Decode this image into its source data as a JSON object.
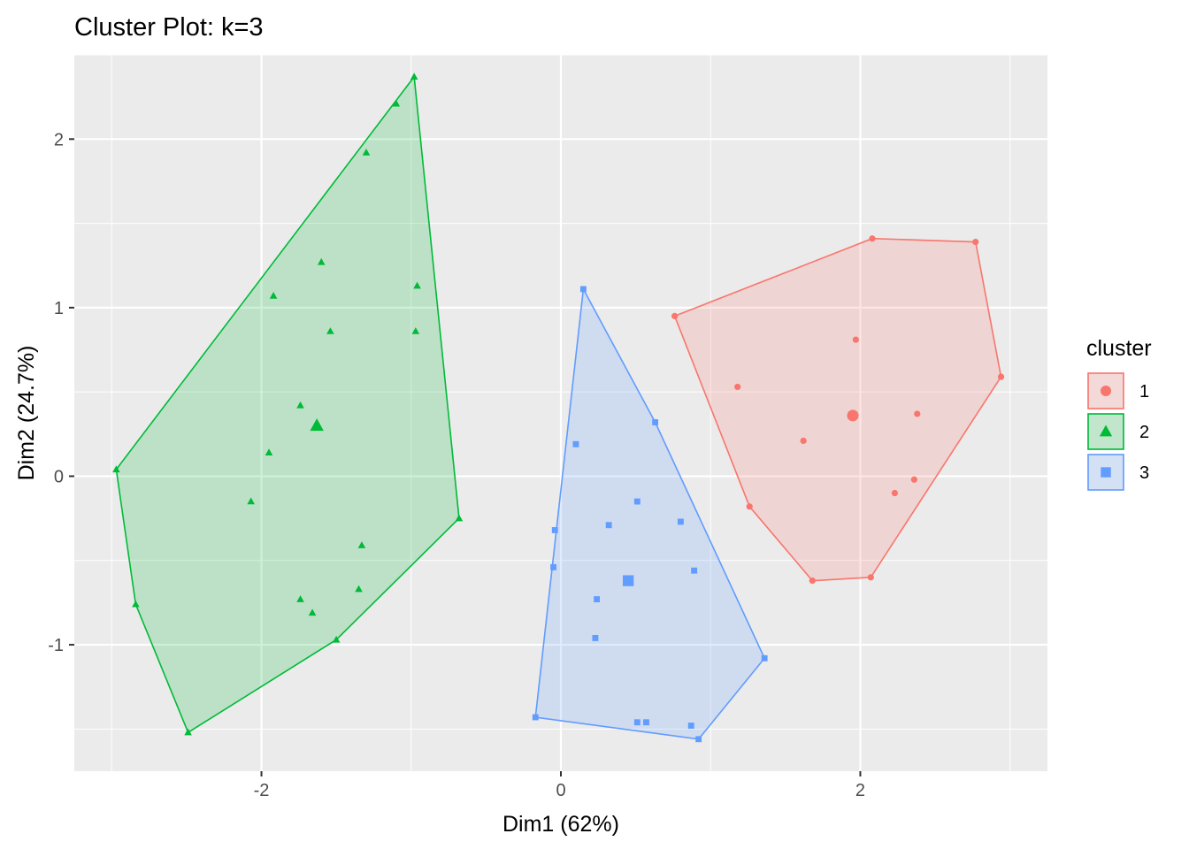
{
  "chart_data": {
    "type": "scatter",
    "title": "Cluster Plot: k=3",
    "xlabel": "Dim1 (62%)",
    "ylabel": "Dim2 (24.7%)",
    "xlim": [
      -3.25,
      3.25
    ],
    "ylim": [
      -1.75,
      2.5
    ],
    "xticks": [
      -2,
      0,
      2
    ],
    "xtick_labels": [
      "-2",
      "0",
      "2"
    ],
    "yticks": [
      -1,
      0,
      1,
      2
    ],
    "ytick_labels": [
      "-1",
      "0",
      "1",
      "2"
    ],
    "grid": true,
    "legend": {
      "title": "cluster",
      "position": "right"
    },
    "series": [
      {
        "name": "1",
        "shape": "circle",
        "color": "#F8766D",
        "points": [
          [
            2.08,
            1.41
          ],
          [
            2.77,
            1.39
          ],
          [
            2.94,
            0.59
          ],
          [
            0.76,
            0.95
          ],
          [
            1.97,
            0.81
          ],
          [
            1.18,
            0.53
          ],
          [
            2.38,
            0.37
          ],
          [
            1.62,
            0.21
          ],
          [
            2.36,
            -0.02
          ],
          [
            2.23,
            -0.1
          ],
          [
            1.26,
            -0.18
          ],
          [
            2.07,
            -0.6
          ],
          [
            1.68,
            -0.62
          ]
        ],
        "center": [
          1.95,
          0.36
        ],
        "hull": [
          [
            0.76,
            0.95
          ],
          [
            2.08,
            1.41
          ],
          [
            2.77,
            1.39
          ],
          [
            2.94,
            0.59
          ],
          [
            2.07,
            -0.6
          ],
          [
            1.68,
            -0.62
          ],
          [
            1.26,
            -0.18
          ]
        ]
      },
      {
        "name": "2",
        "shape": "triangle",
        "color": "#00BA38",
        "points": [
          [
            -0.98,
            2.37
          ],
          [
            -1.1,
            2.21
          ],
          [
            -1.3,
            1.92
          ],
          [
            -1.6,
            1.27
          ],
          [
            -0.96,
            1.13
          ],
          [
            -1.92,
            1.07
          ],
          [
            -1.54,
            0.86
          ],
          [
            -0.97,
            0.86
          ],
          [
            -1.74,
            0.42
          ],
          [
            -1.95,
            0.14
          ],
          [
            -2.97,
            0.04
          ],
          [
            -2.07,
            -0.15
          ],
          [
            -1.33,
            -0.41
          ],
          [
            -0.68,
            -0.25
          ],
          [
            -1.35,
            -0.67
          ],
          [
            -1.74,
            -0.73
          ],
          [
            -1.66,
            -0.81
          ],
          [
            -2.84,
            -0.76
          ],
          [
            -1.5,
            -0.97
          ],
          [
            -2.49,
            -1.52
          ]
        ],
        "center": [
          -1.63,
          0.3
        ],
        "hull": [
          [
            -2.97,
            0.04
          ],
          [
            -0.98,
            2.37
          ],
          [
            -0.68,
            -0.25
          ],
          [
            -1.5,
            -0.97
          ],
          [
            -2.49,
            -1.52
          ],
          [
            -2.84,
            -0.76
          ]
        ]
      },
      {
        "name": "3",
        "shape": "square",
        "color": "#619CFF",
        "points": [
          [
            0.15,
            1.11
          ],
          [
            0.63,
            0.32
          ],
          [
            0.1,
            0.19
          ],
          [
            0.51,
            -0.15
          ],
          [
            0.8,
            -0.27
          ],
          [
            0.32,
            -0.29
          ],
          [
            -0.04,
            -0.32
          ],
          [
            -0.05,
            -0.54
          ],
          [
            0.89,
            -0.56
          ],
          [
            0.24,
            -0.73
          ],
          [
            0.23,
            -0.96
          ],
          [
            1.36,
            -1.08
          ],
          [
            -0.17,
            -1.43
          ],
          [
            0.51,
            -1.46
          ],
          [
            0.57,
            -1.46
          ],
          [
            0.87,
            -1.48
          ],
          [
            0.92,
            -1.56
          ]
        ],
        "center": [
          0.45,
          -0.62
        ],
        "hull": [
          [
            -0.17,
            -1.43
          ],
          [
            0.15,
            1.11
          ],
          [
            0.63,
            0.32
          ],
          [
            1.36,
            -1.08
          ],
          [
            0.92,
            -1.56
          ]
        ]
      }
    ]
  }
}
